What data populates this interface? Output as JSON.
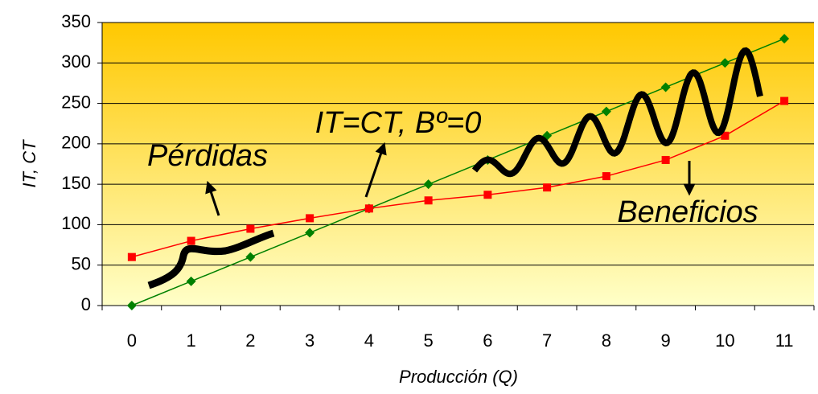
{
  "chart_data": {
    "type": "line",
    "x_label": "Producción (Q)",
    "y_label": "IT, CT",
    "categories": [
      "0",
      "1",
      "2",
      "3",
      "4",
      "5",
      "6",
      "7",
      "8",
      "9",
      "10",
      "11"
    ],
    "series": [
      {
        "color": "#008000",
        "marker": "diamond",
        "values": [
          0,
          30,
          60,
          90,
          120,
          150,
          180,
          210,
          240,
          270,
          300,
          330
        ]
      },
      {
        "color": "#ff0000",
        "marker": "square",
        "values": [
          60,
          80,
          95,
          108,
          120,
          130,
          137,
          146,
          160,
          180,
          210,
          253
        ]
      }
    ],
    "ylim": [
      0,
      350
    ],
    "yticks": [
      0,
      50,
      100,
      150,
      200,
      250,
      300,
      350
    ],
    "grid": true,
    "annotations": [
      "Pérdidas",
      "IT=CT, Bº=0",
      "Beneficios"
    ]
  }
}
